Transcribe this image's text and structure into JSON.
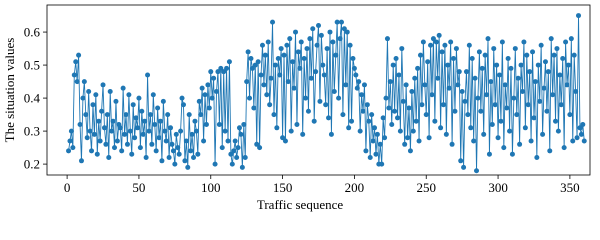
{
  "chart_data": {
    "type": "line",
    "xlabel": "Traffic sequence",
    "ylabel": "The situation values",
    "xlim": [
      -14,
      364
    ],
    "xticks": [
      0,
      50,
      100,
      150,
      200,
      250,
      300,
      350
    ],
    "ylim": [
      0.167,
      0.682
    ],
    "yticks": [
      0.2,
      0.3,
      0.4,
      0.5,
      0.6
    ],
    "marker": true,
    "series": [
      {
        "color": "#1f77b4",
        "x": [
          1,
          2,
          3,
          4,
          5,
          6,
          7,
          8,
          9,
          10,
          11,
          12,
          13,
          14,
          15,
          16,
          17,
          18,
          19,
          20,
          21,
          22,
          23,
          24,
          25,
          26,
          27,
          28,
          29,
          30,
          31,
          32,
          33,
          34,
          35,
          36,
          37,
          38,
          39,
          40,
          41,
          42,
          43,
          44,
          45,
          46,
          47,
          48,
          49,
          50,
          51,
          52,
          53,
          54,
          55,
          56,
          57,
          58,
          59,
          60,
          61,
          62,
          63,
          64,
          65,
          66,
          67,
          68,
          69,
          70,
          71,
          72,
          73,
          74,
          75,
          76,
          77,
          78,
          79,
          80,
          81,
          82,
          83,
          84,
          85,
          86,
          87,
          88,
          89,
          90,
          91,
          92,
          93,
          94,
          95,
          96,
          97,
          98,
          99,
          100,
          101,
          102,
          103,
          104,
          105,
          106,
          107,
          108,
          109,
          110,
          111,
          112,
          113,
          114,
          115,
          116,
          117,
          118,
          119,
          120,
          121,
          122,
          123,
          124,
          125,
          126,
          127,
          128,
          129,
          130,
          131,
          132,
          133,
          134,
          135,
          136,
          137,
          138,
          139,
          140,
          141,
          142,
          143,
          144,
          145,
          146,
          147,
          148,
          149,
          150,
          151,
          152,
          153,
          154,
          155,
          156,
          157,
          158,
          159,
          160,
          161,
          162,
          163,
          164,
          165,
          166,
          167,
          168,
          169,
          170,
          171,
          172,
          173,
          174,
          175,
          176,
          177,
          178,
          179,
          180,
          181,
          182,
          183,
          184,
          185,
          186,
          187,
          188,
          189,
          190,
          191,
          192,
          193,
          194,
          195,
          196,
          197,
          198,
          199,
          200,
          201,
          202,
          203,
          204,
          205,
          206,
          207,
          208,
          209,
          210,
          211,
          212,
          213,
          214,
          215,
          216,
          217,
          218,
          219,
          220,
          221,
          222,
          223,
          224,
          225,
          226,
          227,
          228,
          229,
          230,
          231,
          232,
          233,
          234,
          235,
          236,
          237,
          238,
          239,
          240,
          241,
          242,
          243,
          244,
          245,
          246,
          247,
          248,
          249,
          250,
          251,
          252,
          253,
          254,
          255,
          256,
          257,
          258,
          259,
          260,
          261,
          262,
          263,
          264,
          265,
          266,
          267,
          268,
          269,
          270,
          271,
          272,
          273,
          274,
          275,
          276,
          277,
          278,
          279,
          280,
          281,
          282,
          283,
          284,
          285,
          286,
          287,
          288,
          289,
          290,
          291,
          292,
          293,
          294,
          295,
          296,
          297,
          298,
          299,
          300,
          301,
          302,
          303,
          304,
          305,
          306,
          307,
          308,
          309,
          310,
          311,
          312,
          313,
          314,
          315,
          316,
          317,
          318,
          319,
          320,
          321,
          322,
          323,
          324,
          325,
          326,
          327,
          328,
          329,
          330,
          331,
          332,
          333,
          334,
          335,
          336,
          337,
          338,
          339,
          340,
          341,
          342,
          343,
          344,
          345,
          346,
          347,
          348,
          349,
          350,
          351,
          352,
          353,
          354,
          355,
          356,
          357,
          358,
          359,
          360
        ],
        "values": [
          0.24,
          0.27,
          0.3,
          0.25,
          0.47,
          0.51,
          0.45,
          0.53,
          0.32,
          0.21,
          0.4,
          0.45,
          0.35,
          0.28,
          0.42,
          0.3,
          0.24,
          0.38,
          0.29,
          0.41,
          0.23,
          0.33,
          0.27,
          0.36,
          0.44,
          0.31,
          0.26,
          0.35,
          0.22,
          0.42,
          0.3,
          0.33,
          0.25,
          0.39,
          0.27,
          0.32,
          0.31,
          0.24,
          0.43,
          0.29,
          0.35,
          0.26,
          0.41,
          0.3,
          0.23,
          0.38,
          0.28,
          0.34,
          0.31,
          0.4,
          0.25,
          0.36,
          0.29,
          0.33,
          0.22,
          0.47,
          0.3,
          0.35,
          0.26,
          0.41,
          0.32,
          0.24,
          0.37,
          0.28,
          0.33,
          0.21,
          0.39,
          0.3,
          0.27,
          0.35,
          0.22,
          0.31,
          0.26,
          0.24,
          0.2,
          0.29,
          0.25,
          0.23,
          0.3,
          0.4,
          0.38,
          0.21,
          0.27,
          0.19,
          0.35,
          0.24,
          0.29,
          0.22,
          0.33,
          0.3,
          0.23,
          0.39,
          0.35,
          0.43,
          0.27,
          0.41,
          0.32,
          0.44,
          0.37,
          0.48,
          0.4,
          0.46,
          0.2,
          0.42,
          0.48,
          0.32,
          0.49,
          0.25,
          0.48,
          0.3,
          0.49,
          0.27,
          0.51,
          0.23,
          0.2,
          0.24,
          0.27,
          0.22,
          0.25,
          0.31,
          0.29,
          0.19,
          0.32,
          0.22,
          0.45,
          0.54,
          0.4,
          0.52,
          0.49,
          0.37,
          0.5,
          0.26,
          0.51,
          0.25,
          0.47,
          0.56,
          0.44,
          0.53,
          0.41,
          0.57,
          0.38,
          0.46,
          0.63,
          0.35,
          0.5,
          0.31,
          0.52,
          0.47,
          0.55,
          0.28,
          0.53,
          0.27,
          0.56,
          0.45,
          0.58,
          0.3,
          0.51,
          0.43,
          0.6,
          0.32,
          0.54,
          0.49,
          0.57,
          0.29,
          0.52,
          0.4,
          0.55,
          0.36,
          0.58,
          0.46,
          0.61,
          0.33,
          0.48,
          0.56,
          0.62,
          0.39,
          0.59,
          0.5,
          0.47,
          0.38,
          0.55,
          0.34,
          0.6,
          0.29,
          0.57,
          0.42,
          0.53,
          0.63,
          0.4,
          0.58,
          0.63,
          0.35,
          0.61,
          0.44,
          0.6,
          0.31,
          0.56,
          0.33,
          0.52,
          0.49,
          0.47,
          0.43,
          0.45,
          0.3,
          0.41,
          0.36,
          0.44,
          0.24,
          0.38,
          0.33,
          0.22,
          0.35,
          0.27,
          0.31,
          0.23,
          0.29,
          0.2,
          0.26,
          0.2,
          0.34,
          0.28,
          0.4,
          0.58,
          0.37,
          0.45,
          0.32,
          0.5,
          0.36,
          0.52,
          0.34,
          0.47,
          0.3,
          0.55,
          0.39,
          0.26,
          0.44,
          0.28,
          0.37,
          0.24,
          0.42,
          0.3,
          0.46,
          0.33,
          0.49,
          0.27,
          0.53,
          0.38,
          0.57,
          0.44,
          0.35,
          0.51,
          0.28,
          0.56,
          0.41,
          0.58,
          0.33,
          0.57,
          0.46,
          0.59,
          0.31,
          0.54,
          0.38,
          0.56,
          0.29,
          0.5,
          0.43,
          0.57,
          0.26,
          0.52,
          0.36,
          0.55,
          0.44,
          0.48,
          0.21,
          0.42,
          0.19,
          0.39,
          0.48,
          0.35,
          0.56,
          0.31,
          0.52,
          0.27,
          0.46,
          0.18,
          0.4,
          0.54,
          0.36,
          0.49,
          0.29,
          0.53,
          0.41,
          0.58,
          0.23,
          0.45,
          0.32,
          0.55,
          0.38,
          0.5,
          0.28,
          0.47,
          0.33,
          0.57,
          0.25,
          0.44,
          0.37,
          0.52,
          0.3,
          0.49,
          0.23,
          0.4,
          0.55,
          0.35,
          0.46,
          0.26,
          0.5,
          0.42,
          0.57,
          0.31,
          0.53,
          0.38,
          0.48,
          0.27,
          0.54,
          0.34,
          0.45,
          0.22,
          0.5,
          0.39,
          0.56,
          0.29,
          0.43,
          0.51,
          0.36,
          0.48,
          0.24,
          0.58,
          0.41,
          0.53,
          0.33,
          0.55,
          0.3,
          0.47,
          0.38,
          0.52,
          0.25,
          0.57,
          0.44,
          0.5,
          0.35,
          0.58,
          0.27,
          0.53,
          0.42,
          0.28,
          0.65,
          0.31,
          0.29,
          0.32,
          0.27
        ]
      }
    ]
  }
}
